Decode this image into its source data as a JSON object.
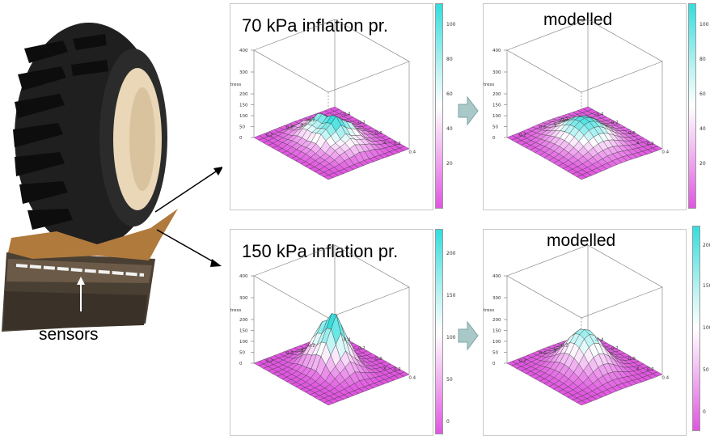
{
  "labels": {
    "sensors": "sensors"
  },
  "panels": [
    {
      "title": "70 kPa inflation pr.",
      "z_ticks": [
        "400",
        "300",
        "200",
        "150",
        "100",
        "50",
        "0"
      ],
      "colorbar_ticks": [
        "100",
        "80",
        "60",
        "40",
        "20"
      ],
      "z_label": "stress",
      "y_label": "y",
      "x_label": "x",
      "y_ticks": [
        "0.2",
        "0.0",
        "-0.2"
      ],
      "x_ticks": [
        "0.4",
        "0.2",
        "0.0",
        "-0.2",
        "-0.4"
      ]
    },
    {
      "title": "modelled",
      "z_ticks": [
        "400",
        "300",
        "200",
        "150",
        "100",
        "50",
        "0"
      ],
      "colorbar_ticks": [
        "100",
        "80",
        "60",
        "40",
        "20"
      ],
      "z_label": "stress",
      "y_label": "y",
      "x_label": "x",
      "y_ticks": [
        "0.2",
        "0.0",
        "-0.2"
      ],
      "x_ticks": [
        "0.4",
        "0.2",
        "0.0",
        "-0.2",
        "-0.4"
      ]
    },
    {
      "title": "150 kPa inflation pr.",
      "z_ticks": [
        "400",
        "300",
        "200",
        "150",
        "100",
        "50",
        "0"
      ],
      "colorbar_ticks": [
        "200",
        "150",
        "100",
        "50",
        "0"
      ],
      "z_label": "stress",
      "y_label": "y",
      "x_label": "x",
      "y_ticks": [
        "0.2",
        "0.0",
        "-0.2"
      ],
      "x_ticks": [
        "0.4",
        "0.2",
        "0.0",
        "-0.2",
        "-0.4"
      ]
    },
    {
      "title": "modelled",
      "z_ticks": [
        "400",
        "300",
        "200",
        "150",
        "100",
        "50",
        "0"
      ],
      "colorbar_ticks": [
        "200",
        "150",
        "100",
        "50",
        "0"
      ],
      "z_label": "stress",
      "y_label": "y",
      "x_label": "x",
      "y_ticks": [
        "0.2",
        "0.0",
        "-0.2"
      ],
      "x_ticks": [
        "0.4",
        "0.2",
        "0.0",
        "-0.2",
        "-0.4"
      ]
    }
  ],
  "colors": {
    "peak": "#33dede",
    "base": "#e055e0",
    "soil": "#b07a3c",
    "tire": "#1f1f1f",
    "rim": "#e9d7b8",
    "arrow_fill": "#a9c9c9"
  }
}
